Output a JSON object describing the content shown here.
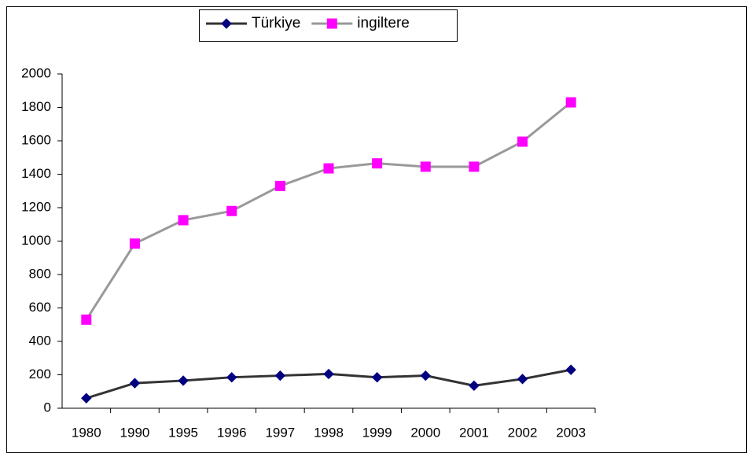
{
  "chart_data": {
    "type": "line",
    "categories": [
      "1980",
      "1990",
      "1995",
      "1996",
      "1997",
      "1998",
      "1999",
      "2000",
      "2001",
      "2002",
      "2003"
    ],
    "series": [
      {
        "name": "Türkiye",
        "color": "#333333",
        "marker_color": "#000080",
        "marker": "diamond",
        "values": [
          60,
          150,
          165,
          185,
          195,
          205,
          185,
          195,
          135,
          175,
          230
        ]
      },
      {
        "name": "ingiltere",
        "color": "#999999",
        "marker_color": "#ff00ff",
        "marker": "square",
        "values": [
          530,
          985,
          1125,
          1180,
          1330,
          1435,
          1465,
          1445,
          1445,
          1595,
          1830
        ]
      }
    ],
    "ylim": [
      0,
      2000
    ],
    "yticks": [
      0,
      200,
      400,
      600,
      800,
      1000,
      1200,
      1400,
      1600,
      1800,
      2000
    ],
    "grid": false,
    "legend": "top"
  }
}
